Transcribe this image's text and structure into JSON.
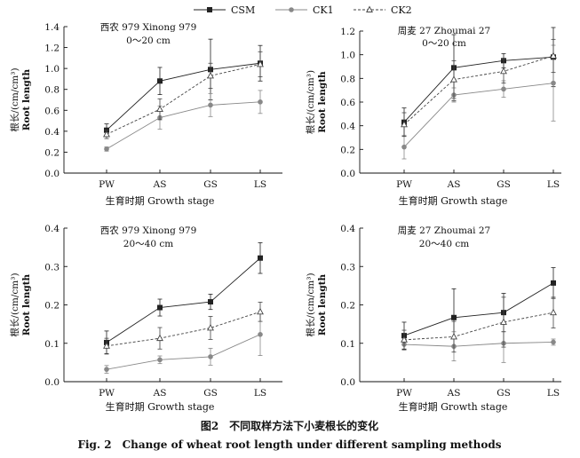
{
  "legend": [
    {
      "name": "CSM",
      "marker": "square",
      "dash": "solid",
      "color": "#222222"
    },
    {
      "name": "CK1",
      "marker": "circle",
      "dash": "solid",
      "color": "#888888"
    },
    {
      "name": "CK2",
      "marker": "triangle",
      "dash": "dashed",
      "color": "#444444"
    }
  ],
  "shared_xlabel": "生育时期 Growth stage",
  "caption_cn": "图2　不同取样方法下小麦根长的变化",
  "caption_en": "Fig. 2　Change of wheat root length under different sampling methods",
  "chart_data": [
    {
      "type": "line",
      "title_line1": "西农 979 Xinong 979",
      "title_line2": "0～20 cm",
      "ylabel_cn": "根长/(cm/cm³)",
      "ylabel_en": "Root length",
      "categories": [
        "PW",
        "AS",
        "GS",
        "LS"
      ],
      "ylim": [
        0,
        1.4
      ],
      "yticks": [
        "0.0",
        "0.2",
        "0.4",
        "0.6",
        "0.8",
        "1.0",
        "1.2",
        "1.4"
      ],
      "series": [
        {
          "name": "CSM",
          "values": [
            0.41,
            0.88,
            0.99,
            1.05
          ],
          "errors": [
            0.06,
            0.13,
            0.29,
            0.17
          ]
        },
        {
          "name": "CK1",
          "values": [
            0.23,
            0.53,
            0.65,
            0.68
          ],
          "errors": [
            0.02,
            0.11,
            0.11,
            0.11
          ]
        },
        {
          "name": "CK2",
          "values": [
            0.37,
            0.61,
            0.93,
            1.04
          ],
          "errors": [
            0.04,
            0.1,
            0.12,
            0.12
          ]
        }
      ]
    },
    {
      "type": "line",
      "title_line1": "周麦 27 Zhoumai 27",
      "title_line2": "0～20 cm",
      "ylabel_cn": "根长/(cm/cm³)",
      "ylabel_en": "Root length",
      "categories": [
        "PW",
        "AS",
        "GS",
        "LS"
      ],
      "ylim": [
        0,
        1.2
      ],
      "yticks": [
        "0.0",
        "0.2",
        "0.4",
        "0.6",
        "0.8",
        "1.0",
        "1.2"
      ],
      "series": [
        {
          "name": "CSM",
          "values": [
            0.43,
            0.89,
            0.95,
            0.98
          ],
          "errors": [
            0.12,
            0.28,
            0.06,
            0.25
          ]
        },
        {
          "name": "CK1",
          "values": [
            0.22,
            0.66,
            0.71,
            0.76
          ],
          "errors": [
            0.1,
            0.06,
            0.07,
            0.32
          ]
        },
        {
          "name": "CK2",
          "values": [
            0.41,
            0.79,
            0.86,
            0.99
          ],
          "errors": [
            0.1,
            0.16,
            0.1,
            0.14
          ]
        }
      ]
    },
    {
      "type": "line",
      "title_line1": "西农 979 Xinong 979",
      "title_line2": "20～40 cm",
      "ylabel_cn": "根长/(cm/cm³)",
      "ylabel_en": "Root length",
      "categories": [
        "PW",
        "AS",
        "GS",
        "LS"
      ],
      "ylim": [
        0,
        0.4
      ],
      "yticks": [
        "0.0",
        "0.1",
        "0.2",
        "0.3",
        "0.4"
      ],
      "series": [
        {
          "name": "CSM",
          "values": [
            0.102,
            0.193,
            0.208,
            0.322
          ],
          "errors": [
            0.03,
            0.022,
            0.02,
            0.04
          ]
        },
        {
          "name": "CK1",
          "values": [
            0.032,
            0.057,
            0.065,
            0.123
          ],
          "errors": [
            0.01,
            0.01,
            0.022,
            0.055
          ]
        },
        {
          "name": "CK2",
          "values": [
            0.093,
            0.113,
            0.14,
            0.182
          ],
          "errors": [
            0.02,
            0.028,
            0.03,
            0.025
          ]
        }
      ]
    },
    {
      "type": "line",
      "title_line1": "周麦 27 Zhoumai 27",
      "title_line2": "20～40 cm",
      "ylabel_cn": "根长/(cm/cm³)",
      "ylabel_en": "Root length",
      "categories": [
        "PW",
        "AS",
        "GS",
        "LS"
      ],
      "ylim": [
        0,
        0.4
      ],
      "yticks": [
        "0.0",
        "0.1",
        "0.2",
        "0.3",
        "0.4"
      ],
      "series": [
        {
          "name": "CSM",
          "values": [
            0.12,
            0.167,
            0.18,
            0.257
          ],
          "errors": [
            0.035,
            0.075,
            0.05,
            0.04
          ]
        },
        {
          "name": "CK1",
          "values": [
            0.097,
            0.092,
            0.1,
            0.103
          ],
          "errors": [
            0.015,
            0.038,
            0.05,
            0.008
          ]
        },
        {
          "name": "CK2",
          "values": [
            0.109,
            0.117,
            0.155,
            0.18
          ],
          "errors": [
            0.025,
            0.04,
            0.065,
            0.04
          ]
        }
      ]
    }
  ]
}
